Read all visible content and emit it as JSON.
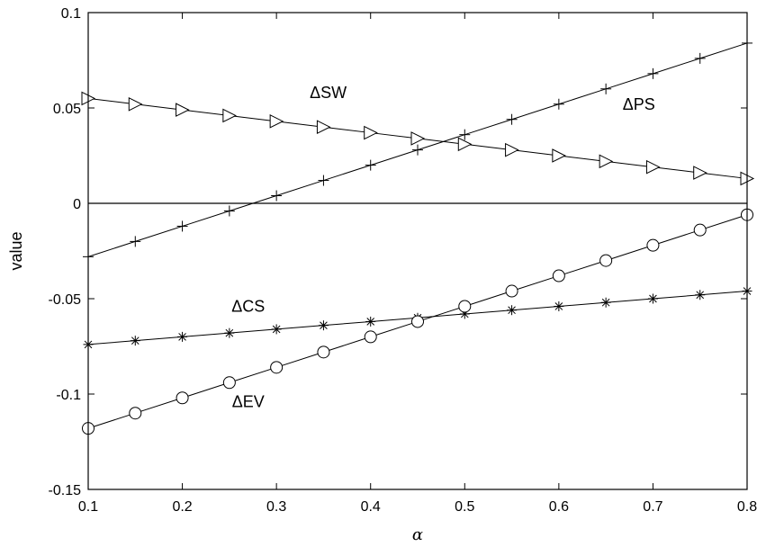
{
  "chart_data": {
    "type": "line",
    "title": "",
    "xlabel": "α",
    "ylabel": "value",
    "xlim": [
      0.1,
      0.8
    ],
    "ylim": [
      -0.15,
      0.1
    ],
    "x_ticks": [
      "0.1",
      "0.2",
      "0.3",
      "0.4",
      "0.5",
      "0.6",
      "0.7",
      "0.8"
    ],
    "y_ticks": [
      "-0.15",
      "-0.1",
      "-0.05",
      "0",
      "0.05",
      "0.1"
    ],
    "grid": false,
    "zero_line": true,
    "x": [
      0.1,
      0.15,
      0.2,
      0.25,
      0.3,
      0.35,
      0.4,
      0.45,
      0.5,
      0.55,
      0.6,
      0.65,
      0.7,
      0.75,
      0.8
    ],
    "series": [
      {
        "marker": "triangle-right",
        "values": [
          0.055,
          0.052,
          0.049,
          0.046,
          0.043,
          0.04,
          0.037,
          0.034,
          0.031,
          0.028,
          0.025,
          0.022,
          0.019,
          0.016,
          0.013
        ]
      },
      {
        "marker": "plus",
        "values": [
          -0.028,
          -0.02,
          -0.012,
          -0.004,
          0.004,
          0.012,
          0.02,
          0.028,
          0.036,
          0.044,
          0.052,
          0.06,
          0.068,
          0.076,
          0.084
        ]
      },
      {
        "marker": "asterisk",
        "values": [
          -0.074,
          -0.072,
          -0.07,
          -0.068,
          -0.066,
          -0.064,
          -0.062,
          -0.06,
          -0.058,
          -0.056,
          -0.054,
          -0.052,
          -0.05,
          -0.048,
          -0.046
        ]
      },
      {
        "marker": "circle",
        "values": [
          -0.118,
          -0.11,
          -0.102,
          -0.094,
          -0.086,
          -0.078,
          -0.07,
          -0.062,
          -0.054,
          -0.046,
          -0.038,
          -0.03,
          -0.022,
          -0.014,
          -0.006
        ]
      }
    ],
    "annotations": [
      {
        "text": "ΔSW",
        "x": 0.355,
        "y": 0.058
      },
      {
        "text": "ΔPS",
        "x": 0.685,
        "y": 0.052
      },
      {
        "text": "ΔCS",
        "x": 0.27,
        "y": -0.054
      },
      {
        "text": "ΔEV",
        "x": 0.27,
        "y": -0.104
      }
    ]
  }
}
